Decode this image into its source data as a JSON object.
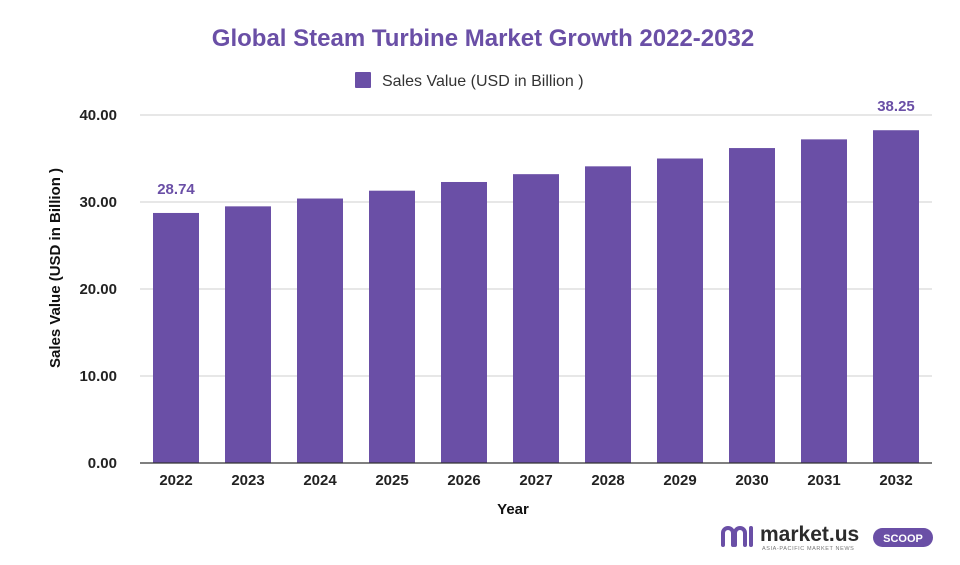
{
  "colors": {
    "accent": "#6a4fa6",
    "title": "#6a4fa6",
    "grid": "#cfcfcf",
    "axis": "#222222"
  },
  "chart_data": {
    "type": "bar",
    "title": "Global Steam Turbine Market Growth 2022-2032",
    "xlabel": "Year",
    "ylabel": "Sales Value (USD in Billion )",
    "ylim": [
      0,
      40
    ],
    "yticks": [
      "0.00",
      "10.00",
      "20.00",
      "30.00",
      "40.00"
    ],
    "grid": true,
    "legend_position": "top-center",
    "categories": [
      "2022",
      "2023",
      "2024",
      "2025",
      "2026",
      "2027",
      "2028",
      "2029",
      "2030",
      "2031",
      "2032"
    ],
    "series": [
      {
        "name": "Sales Value (USD in Billion )",
        "color": "#6a4fa6",
        "values": [
          28.74,
          29.5,
          30.4,
          31.3,
          32.3,
          33.2,
          34.1,
          35.0,
          36.2,
          37.2,
          38.25
        ]
      }
    ],
    "data_labels": [
      {
        "category": "2022",
        "text": "28.74"
      },
      {
        "category": "2032",
        "text": "38.25"
      }
    ]
  },
  "branding": {
    "name": "market.us",
    "tagline": "ASIA-PACIFIC MARKET NEWS",
    "badge": "SCOOP",
    "icon": "market-us-logo-icon"
  }
}
